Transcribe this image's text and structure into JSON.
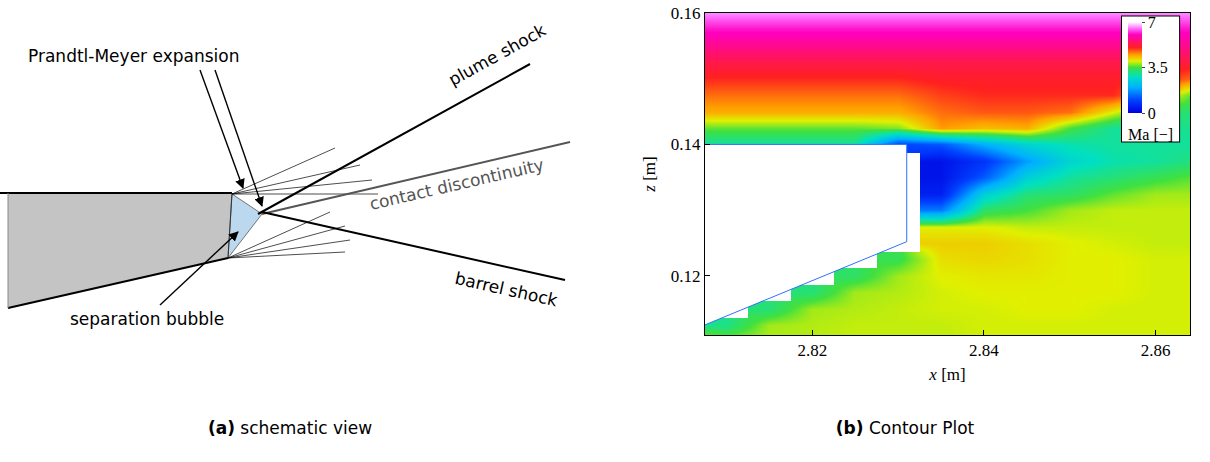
{
  "panel_a": {
    "caption_label": "(a)",
    "caption": "schematic view",
    "labels": {
      "plume_shock": "plume shock",
      "prandtl_meyer": "Prandtl-Meyer expansion",
      "contact": "contact discontinuity",
      "barrel_shock": "barrel shock",
      "separation": "separation bubble"
    }
  },
  "chart_data": {
    "type": "heatmap",
    "caption_label": "(b)",
    "caption": "Contour Plot",
    "x_label": "x [m]",
    "y_label": "z [m]",
    "xlim": [
      2.8075,
      2.864
    ],
    "xticks": [
      2.82,
      2.84,
      2.86
    ],
    "ylim": [
      0.111,
      0.16
    ],
    "yticks": [
      0.12,
      0.14,
      0.16
    ],
    "x": [
      2.805,
      2.81,
      2.815,
      2.82,
      2.825,
      2.83,
      2.835,
      2.84,
      2.845,
      2.85,
      2.855,
      2.86,
      2.865
    ],
    "y": [
      0.11,
      0.1125,
      0.115,
      0.1175,
      0.12,
      0.1225,
      0.125,
      0.1275,
      0.13,
      0.1325,
      0.135,
      0.1375,
      0.14,
      0.1425,
      0.145,
      0.1475,
      0.15,
      0.1525,
      0.155,
      0.1575,
      0.16
    ],
    "z": [
      [
        3.8,
        3.8,
        3.85,
        3.85,
        3.9,
        3.9,
        3.9,
        3.95,
        3.95,
        3.95,
        3.95,
        3.95,
        3.95
      ],
      [
        null,
        3.1,
        3.8,
        3.85,
        3.9,
        3.9,
        3.9,
        3.95,
        3.95,
        3.95,
        3.95,
        3.95,
        3.95
      ],
      [
        null,
        null,
        3.2,
        3.8,
        3.85,
        3.9,
        3.95,
        3.95,
        4.0,
        4.0,
        3.95,
        3.95,
        3.95
      ],
      [
        null,
        null,
        null,
        3.2,
        3.8,
        3.85,
        3.95,
        4.0,
        4.0,
        4.0,
        4.0,
        3.95,
        3.95
      ],
      [
        null,
        null,
        null,
        null,
        3.3,
        3.8,
        4.0,
        4.05,
        4.05,
        4.0,
        4.0,
        3.95,
        3.95
      ],
      [
        null,
        null,
        null,
        null,
        null,
        3.4,
        4.1,
        4.15,
        4.1,
        4.0,
        4.0,
        3.95,
        3.95
      ],
      [
        null,
        null,
        null,
        null,
        null,
        null,
        4.2,
        4.2,
        4.1,
        4.0,
        3.95,
        3.9,
        3.9
      ],
      [
        null,
        null,
        null,
        null,
        null,
        null,
        4.0,
        4.0,
        3.9,
        3.9,
        3.9,
        3.9,
        3.9
      ],
      [
        null,
        null,
        null,
        null,
        null,
        null,
        1.5,
        3.3,
        3.5,
        3.8,
        3.9,
        3.9,
        3.9
      ],
      [
        null,
        null,
        null,
        null,
        null,
        null,
        0.5,
        2.5,
        3.2,
        3.3,
        3.6,
        3.8,
        3.8
      ],
      [
        null,
        null,
        null,
        null,
        null,
        null,
        0.3,
        1.2,
        2.5,
        3.0,
        3.2,
        3.4,
        3.6
      ],
      [
        null,
        null,
        null,
        null,
        null,
        null,
        0.3,
        0.8,
        1.8,
        2.6,
        2.9,
        3.0,
        3.2
      ],
      [
        3.0,
        3.0,
        3.0,
        3.0,
        3.0,
        1.0,
        1.2,
        2.0,
        2.6,
        2.9,
        3.0,
        3.0,
        3.0
      ],
      [
        3.6,
        3.6,
        3.6,
        3.6,
        3.6,
        3.7,
        4.5,
        4.3,
        4.4,
        3.5,
        3.0,
        3.0,
        3.1
      ],
      [
        4.4,
        4.4,
        4.4,
        4.4,
        4.4,
        4.4,
        4.7,
        4.8,
        4.8,
        4.7,
        4.0,
        3.3,
        3.2
      ],
      [
        4.7,
        4.7,
        4.7,
        4.7,
        4.7,
        4.7,
        4.9,
        5.0,
        5.0,
        5.0,
        5.0,
        4.4,
        3.4
      ],
      [
        5.0,
        5.0,
        5.0,
        5.0,
        5.0,
        5.0,
        5.1,
        5.1,
        5.1,
        5.1,
        5.1,
        5.1,
        4.6
      ],
      [
        5.3,
        5.3,
        5.3,
        5.3,
        5.3,
        5.3,
        5.3,
        5.3,
        5.3,
        5.3,
        5.3,
        5.3,
        5.2
      ],
      [
        5.7,
        5.7,
        5.7,
        5.7,
        5.7,
        5.7,
        5.7,
        5.7,
        5.7,
        5.7,
        5.7,
        5.7,
        5.7
      ],
      [
        6.1,
        6.1,
        6.1,
        6.1,
        6.1,
        6.1,
        6.1,
        6.1,
        6.1,
        6.1,
        6.1,
        6.1,
        6.1
      ],
      [
        6.6,
        6.6,
        6.6,
        6.6,
        6.6,
        6.6,
        6.6,
        6.6,
        6.6,
        6.6,
        6.6,
        6.6,
        6.6
      ]
    ],
    "colorbar": {
      "title": "Ma [−]",
      "range": [
        0,
        7
      ],
      "ticks": [
        0,
        3.5,
        7
      ]
    },
    "body": {
      "x": [
        2.8,
        2.831,
        2.831,
        2.8
      ],
      "y": [
        0.14,
        0.14,
        0.1252,
        0.1085
      ]
    }
  }
}
